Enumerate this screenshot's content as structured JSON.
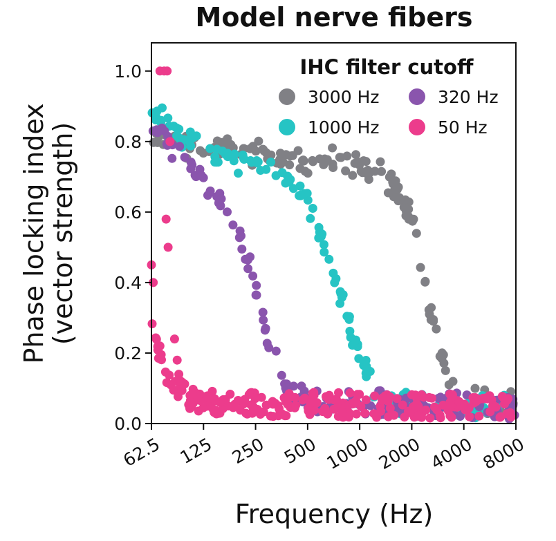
{
  "chart_data": {
    "type": "scatter",
    "title": "Model nerve fibers",
    "xlabel": "Frequency (Hz)",
    "ylabel_line1": "Phase locking index",
    "ylabel_line2": "(vector strength)",
    "x_scale": "log2",
    "xlim": [
      62.5,
      8000
    ],
    "ylim": [
      0.0,
      1.08
    ],
    "x_ticks": [
      62.5,
      125,
      250,
      500,
      1000,
      2000,
      4000,
      8000
    ],
    "x_tick_labels": [
      "62.5",
      "125",
      "250",
      "500",
      "1000",
      "2000",
      "4000",
      "8000"
    ],
    "y_ticks": [
      0.0,
      0.2,
      0.4,
      0.6,
      0.8,
      1.0
    ],
    "y_tick_labels": [
      "0.0",
      "0.2",
      "0.4",
      "0.6",
      "0.8",
      "1.0"
    ],
    "legend": {
      "title": "IHC filter cutoff",
      "placement": "top-right",
      "entries": [
        "3000 Hz",
        "1000 Hz",
        "320 Hz",
        "50 Hz"
      ]
    },
    "series": [
      {
        "name": "3000 Hz",
        "color": "#808085",
        "curve": [
          [
            62.5,
            0.82
          ],
          [
            100,
            0.79
          ],
          [
            200,
            0.77
          ],
          [
            400,
            0.75
          ],
          [
            800,
            0.74
          ],
          [
            1300,
            0.71
          ],
          [
            1700,
            0.66
          ],
          [
            2000,
            0.57
          ],
          [
            2400,
            0.4
          ],
          [
            2800,
            0.24
          ],
          [
            3300,
            0.1
          ],
          [
            4000,
            0.06
          ],
          [
            8000,
            0.05
          ]
        ]
      },
      {
        "name": "1000 Hz",
        "color": "#26c4c4",
        "curve": [
          [
            62.5,
            0.9
          ],
          [
            90,
            0.82
          ],
          [
            130,
            0.77
          ],
          [
            200,
            0.75
          ],
          [
            300,
            0.73
          ],
          [
            450,
            0.66
          ],
          [
            600,
            0.54
          ],
          [
            800,
            0.34
          ],
          [
            1000,
            0.18
          ],
          [
            1300,
            0.08
          ],
          [
            1800,
            0.05
          ],
          [
            8000,
            0.04
          ]
        ]
      },
      {
        "name": "320 Hz",
        "color": "#8a55ad",
        "curve": [
          [
            62.5,
            0.87
          ],
          [
            80,
            0.8
          ],
          [
            120,
            0.7
          ],
          [
            160,
            0.62
          ],
          [
            200,
            0.54
          ],
          [
            250,
            0.38
          ],
          [
            300,
            0.22
          ],
          [
            380,
            0.1
          ],
          [
            500,
            0.06
          ],
          [
            8000,
            0.04
          ]
        ]
      },
      {
        "name": "50 Hz",
        "color": "#ec3c8c",
        "curve": [
          [
            62.5,
            0.3
          ],
          [
            70,
            0.18
          ],
          [
            85,
            0.1
          ],
          [
            120,
            0.05
          ],
          [
            8000,
            0.04
          ]
        ],
        "extra_points": [
          [
            70,
            1.0
          ],
          [
            74,
            1.0
          ],
          [
            77,
            1.0
          ],
          [
            80,
            0.8
          ],
          [
            76,
            0.58
          ],
          [
            78,
            0.5
          ],
          [
            64,
            0.4
          ],
          [
            62.5,
            0.45
          ],
          [
            85,
            0.24
          ],
          [
            88,
            0.18
          ],
          [
            70,
            0.22
          ],
          [
            90,
            0.14
          ]
        ]
      }
    ]
  }
}
